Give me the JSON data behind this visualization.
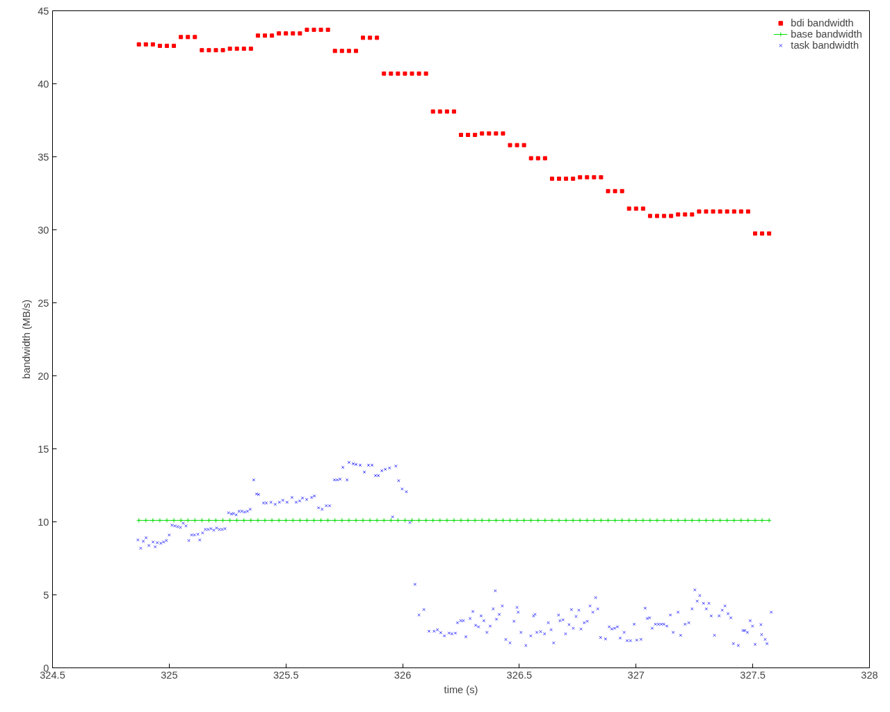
{
  "chart_data": {
    "type": "scatter",
    "xlabel": "time (s)",
    "ylabel": "bandwidth (MB/s)",
    "xlim": [
      324.5,
      328
    ],
    "ylim": [
      0,
      45
    ],
    "xticks": [
      324.5,
      325,
      325.5,
      326,
      326.5,
      327,
      327.5,
      328
    ],
    "yticks": [
      0,
      5,
      10,
      15,
      20,
      25,
      30,
      35,
      40,
      45
    ],
    "grid": false,
    "legend": "top right",
    "series": [
      {
        "name": "bdi bandwidth",
        "marker": "square",
        "color": "#ff0000",
        "x": [
          324.87,
          324.9,
          324.93,
          324.96,
          324.99,
          325.02,
          325.05,
          325.08,
          325.11,
          325.14,
          325.17,
          325.2,
          325.23,
          325.26,
          325.29,
          325.32,
          325.35,
          325.38,
          325.41,
          325.44,
          325.47,
          325.5,
          325.53,
          325.56,
          325.59,
          325.62,
          325.65,
          325.68,
          325.71,
          325.74,
          325.77,
          325.8,
          325.83,
          325.86,
          325.89,
          325.92,
          325.95,
          325.98,
          326.01,
          326.04,
          326.07,
          326.1,
          326.13,
          326.16,
          326.19,
          326.22,
          326.25,
          326.28,
          326.31,
          326.34,
          326.37,
          326.4,
          326.43,
          326.46,
          326.49,
          326.52,
          326.55,
          326.58,
          326.61,
          326.64,
          326.67,
          326.7,
          326.73,
          326.76,
          326.79,
          326.82,
          326.85,
          326.88,
          326.91,
          326.94,
          326.97,
          327.0,
          327.03,
          327.06,
          327.09,
          327.12,
          327.15,
          327.18,
          327.21,
          327.24,
          327.27,
          327.3,
          327.33,
          327.36,
          327.39,
          327.42,
          327.45,
          327.48,
          327.51,
          327.54,
          327.57
        ],
        "values": [
          42.7,
          42.7,
          42.7,
          42.6,
          42.6,
          42.6,
          43.2,
          43.2,
          43.2,
          42.3,
          42.3,
          42.3,
          42.3,
          42.4,
          42.4,
          42.4,
          42.4,
          43.3,
          43.3,
          43.3,
          43.45,
          43.45,
          43.45,
          43.45,
          43.7,
          43.7,
          43.7,
          43.7,
          42.25,
          42.25,
          42.25,
          42.25,
          43.15,
          43.15,
          43.15,
          40.7,
          40.7,
          40.7,
          40.7,
          40.7,
          40.7,
          40.7,
          38.1,
          38.1,
          38.1,
          38.1,
          36.5,
          36.5,
          36.5,
          36.6,
          36.6,
          36.6,
          36.6,
          35.8,
          35.8,
          35.8,
          34.9,
          34.9,
          34.9,
          33.5,
          33.5,
          33.5,
          33.5,
          33.6,
          33.6,
          33.6,
          33.6,
          32.65,
          32.65,
          32.65,
          31.45,
          31.45,
          31.45,
          30.95,
          30.95,
          30.95,
          30.95,
          31.05,
          31.05,
          31.05,
          31.25,
          31.25,
          31.25,
          31.25,
          31.25,
          31.25,
          31.25,
          31.25,
          29.75,
          29.75,
          29.75
        ]
      },
      {
        "name": "base bandwidth",
        "type": "line",
        "marker": "cross",
        "color": "#00dd00",
        "x": [
          324.87,
          324.9,
          324.93,
          324.96,
          324.99,
          325.02,
          325.05,
          325.08,
          325.11,
          325.14,
          325.17,
          325.2,
          325.23,
          325.26,
          325.29,
          325.32,
          325.35,
          325.38,
          325.41,
          325.44,
          325.47,
          325.5,
          325.53,
          325.56,
          325.59,
          325.62,
          325.65,
          325.68,
          325.71,
          325.74,
          325.77,
          325.8,
          325.83,
          325.86,
          325.89,
          325.92,
          325.95,
          325.98,
          326.01,
          326.04,
          326.07,
          326.1,
          326.13,
          326.16,
          326.19,
          326.22,
          326.25,
          326.28,
          326.31,
          326.34,
          326.37,
          326.4,
          326.43,
          326.46,
          326.49,
          326.52,
          326.55,
          326.58,
          326.61,
          326.64,
          326.67,
          326.7,
          326.73,
          326.76,
          326.79,
          326.82,
          326.85,
          326.88,
          326.91,
          326.94,
          326.97,
          327.0,
          327.03,
          327.06,
          327.09,
          327.12,
          327.15,
          327.18,
          327.21,
          327.24,
          327.27,
          327.3,
          327.33,
          327.36,
          327.39,
          327.42,
          327.45,
          327.48,
          327.51,
          327.54,
          327.57
        ],
        "values": [
          10.1,
          10.1,
          10.1,
          10.1,
          10.1,
          10.1,
          10.1,
          10.1,
          10.1,
          10.1,
          10.1,
          10.1,
          10.1,
          10.1,
          10.1,
          10.1,
          10.1,
          10.1,
          10.1,
          10.1,
          10.1,
          10.1,
          10.1,
          10.1,
          10.1,
          10.1,
          10.1,
          10.1,
          10.1,
          10.1,
          10.1,
          10.1,
          10.1,
          10.1,
          10.1,
          10.1,
          10.1,
          10.1,
          10.1,
          10.1,
          10.1,
          10.1,
          10.1,
          10.1,
          10.1,
          10.1,
          10.1,
          10.1,
          10.1,
          10.1,
          10.1,
          10.1,
          10.1,
          10.1,
          10.1,
          10.1,
          10.1,
          10.1,
          10.1,
          10.1,
          10.1,
          10.1,
          10.1,
          10.1,
          10.1,
          10.1,
          10.1,
          10.1,
          10.1,
          10.1,
          10.1,
          10.1,
          10.1,
          10.1,
          10.1,
          10.1,
          10.1,
          10.1,
          10.1,
          10.1,
          10.1,
          10.1,
          10.1,
          10.1,
          10.1,
          10.1,
          10.1,
          10.1,
          10.1,
          10.1,
          10.1
        ]
      },
      {
        "name": "task bandwidth",
        "marker": "cross",
        "color": "#3333ff",
        "x": [
          324.866,
          324.878,
          324.889,
          324.901,
          324.913,
          324.931,
          324.94,
          324.949,
          324.964,
          324.976,
          324.988,
          325.0,
          325.012,
          325.024,
          325.036,
          325.048,
          325.06,
          325.072,
          325.084,
          325.096,
          325.108,
          325.123,
          325.131,
          325.143,
          325.155,
          325.167,
          325.179,
          325.191,
          325.203,
          325.215,
          325.227,
          325.239,
          325.254,
          325.266,
          325.275,
          325.287,
          325.299,
          325.311,
          325.323,
          325.335,
          325.347,
          325.362,
          325.374,
          325.383,
          325.404,
          325.416,
          325.436,
          325.454,
          325.472,
          325.487,
          325.505,
          325.526,
          325.544,
          325.559,
          325.571,
          325.589,
          325.61,
          325.622,
          325.64,
          325.655,
          325.673,
          325.687,
          325.708,
          325.72,
          325.732,
          325.744,
          325.762,
          325.77,
          325.788,
          325.8,
          325.818,
          325.836,
          325.854,
          325.869,
          325.884,
          325.896,
          325.911,
          325.926,
          325.944,
          325.957,
          325.971,
          325.983,
          325.998,
          326.016,
          326.031,
          326.053,
          326.07,
          326.091,
          326.113,
          326.135,
          326.149,
          326.163,
          326.179,
          326.199,
          326.211,
          326.226,
          326.235,
          326.249,
          326.26,
          326.271,
          326.289,
          326.301,
          326.313,
          326.325,
          326.336,
          326.348,
          326.361,
          326.375,
          326.388,
          326.397,
          326.402,
          326.414,
          326.427,
          326.442,
          326.46,
          326.477,
          326.49,
          326.495,
          326.507,
          326.528,
          326.549,
          326.561,
          326.567,
          326.575,
          326.591,
          326.608,
          326.624,
          326.636,
          326.647,
          326.668,
          326.674,
          326.687,
          326.698,
          326.713,
          326.723,
          326.731,
          326.743,
          326.755,
          326.764,
          326.778,
          326.791,
          326.803,
          326.815,
          326.827,
          326.836,
          326.848,
          326.869,
          326.885,
          326.896,
          326.908,
          326.92,
          326.932,
          326.949,
          326.962,
          326.976,
          326.992,
          327.003,
          327.021,
          327.039,
          327.048,
          327.058,
          327.069,
          327.083,
          327.096,
          327.108,
          327.119,
          327.132,
          327.147,
          327.159,
          327.18,
          327.191,
          327.21,
          327.226,
          327.24,
          327.252,
          327.262,
          327.273,
          327.289,
          327.301,
          327.312,
          327.322,
          327.336,
          327.356,
          327.369,
          327.381,
          327.394,
          327.406,
          327.417,
          327.438,
          327.458,
          327.466,
          327.477,
          327.489,
          327.499,
          327.51,
          327.535,
          327.538,
          327.553,
          327.561,
          327.579
        ],
        "values": [
          8.76,
          8.19,
          8.67,
          8.91,
          8.38,
          8.62,
          8.29,
          8.57,
          8.53,
          8.62,
          8.72,
          9.1,
          9.77,
          9.72,
          9.67,
          9.62,
          9.91,
          9.72,
          8.72,
          9.1,
          9.1,
          9.15,
          8.76,
          9.24,
          9.48,
          9.48,
          9.53,
          9.43,
          9.58,
          9.48,
          9.48,
          9.53,
          10.62,
          10.54,
          10.57,
          10.48,
          10.72,
          10.72,
          10.67,
          10.72,
          10.86,
          12.87,
          11.91,
          11.87,
          11.29,
          11.29,
          11.34,
          11.2,
          11.34,
          11.48,
          11.34,
          11.67,
          11.34,
          11.43,
          11.63,
          11.53,
          11.67,
          11.77,
          10.96,
          10.86,
          11.1,
          11.1,
          12.87,
          12.87,
          12.92,
          13.73,
          12.87,
          14.07,
          13.98,
          13.93,
          13.88,
          13.41,
          13.88,
          13.88,
          13.17,
          13.17,
          13.5,
          13.6,
          13.69,
          10.34,
          13.82,
          12.82,
          12.25,
          12.06,
          9.96,
          5.72,
          3.62,
          3.99,
          2.51,
          2.51,
          2.61,
          2.41,
          2.19,
          2.38,
          2.33,
          2.38,
          3.09,
          3.23,
          3.23,
          2.13,
          3.38,
          3.86,
          2.91,
          2.81,
          3.56,
          3.23,
          2.43,
          2.86,
          4.04,
          5.28,
          3.33,
          3.66,
          4.24,
          1.94,
          1.71,
          3.19,
          4.14,
          3.81,
          2.43,
          1.53,
          2.19,
          3.56,
          3.66,
          2.43,
          2.48,
          2.33,
          3.09,
          2.61,
          1.71,
          3.62,
          3.23,
          3.29,
          2.33,
          2.96,
          3.99,
          2.71,
          3.52,
          3.95,
          2.66,
          3.09,
          3.19,
          4.24,
          3.81,
          4.81,
          4.04,
          2.08,
          1.98,
          2.81,
          2.66,
          2.71,
          2.81,
          2.04,
          2.43,
          1.86,
          1.86,
          2.99,
          1.9,
          1.95,
          4.09,
          3.38,
          3.43,
          2.71,
          2.99,
          2.99,
          2.99,
          2.99,
          2.86,
          3.62,
          2.43,
          3.81,
          2.23,
          2.99,
          3.09,
          4.04,
          5.34,
          4.57,
          4.95,
          4.42,
          4.04,
          4.42,
          3.56,
          2.23,
          3.56,
          3.95,
          4.24,
          3.71,
          3.43,
          1.66,
          1.53,
          2.56,
          2.56,
          2.43,
          3.23,
          2.86,
          1.61,
          2.96,
          2.28,
          1.95,
          1.66,
          3.81
        ]
      }
    ]
  }
}
